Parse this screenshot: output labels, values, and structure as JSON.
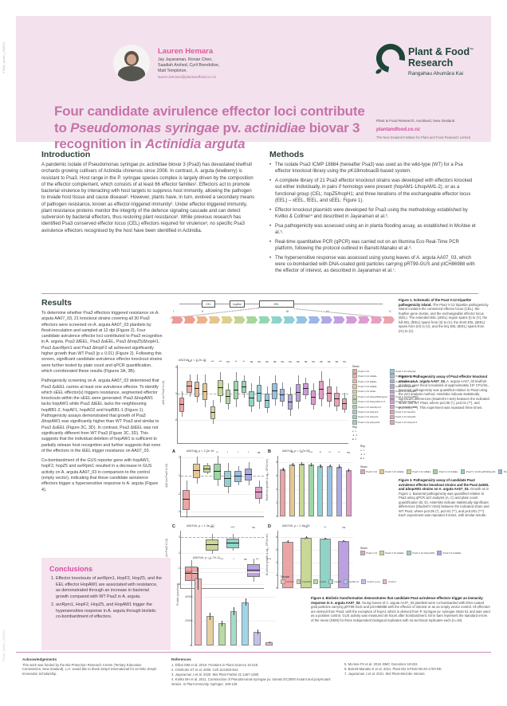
{
  "page": {
    "side_label_top": "PSA3_poster_082021",
    "side_label_bottom": "PSA3_poster_082021"
  },
  "header": {
    "author_name": "Lauren Hemara",
    "coauthors_line1": "Jay Jayaraman, Ronan Chen,",
    "coauthors_line2": "Saadiah Arshed, Cyril Brendolise,",
    "coauthors_line3": "Matt Templeton.",
    "email": "lauren.hemara@plantandfood.co.nz",
    "logo": {
      "line1": "Plant & Food",
      "tm": "™",
      "line2": "Research",
      "tagline": "Rangahau Ahumāra Kai"
    },
    "affiliation": "Plant & Food Research, Auckland, New Zealand",
    "website": "plantandfood.co.nz",
    "institute": "The New Zealand Institute for Plant and Food Research Limited",
    "title": {
      "line1": "Four candidate avirulence effector loci contribute",
      "line2_pre": "to ",
      "line2_it1": "Pseudomonas syringae",
      "line2_mid": " pv. ",
      "line2_it2": "actinidiae",
      "line2_post": " biovar 3",
      "line3_pre": "recognition in ",
      "line3_it": "Actinidia arguta"
    },
    "brand_pink": "#d14f9e",
    "brand_green": "#1d4637"
  },
  "intro": {
    "heading": "Introduction",
    "body": "A pandemic isolate of Pseudomonas syringae pv. actinidiae biovar 3 (Psa3) has devastated kiwifruit orchards growing cultivars of Actinidia chinensis since 2008. In contrast, A. arguta (kiwiberry) is resistant to Psa3. Host range in the P. syringae species complex is largely driven by the composition of the effector complement, which consists of at least 66 effector families¹. Effectors act to promote bacterial virulence by interacting with host targets to suppress host immunity, allowing the pathogen to invade host tissue and cause disease². However, plants have, in turn, evolved a secondary means of pathogen resistance, known as effector-triggered immunity². Under effector-triggered immunity, plant resistance proteins monitor the integrity of the defence signaling cascade and can detect subversion by bacterial effectors, thus restoring plant resistance². While previous research has identified Psa3 conserved effector locus (CEL) effectors required for virulence³, no specific Psa3 avirulence effectors recognised by the host have been identified in Actinidia."
  },
  "methods": {
    "heading": "Methods",
    "bullets": [
      "The isolate Psa3 ICMP 18884 (hereafter Psa3) was used as the wild-type (WT) for a Psa effector knockout library using the pK18mobsacB-based system.",
      "A complete library of 21 Psa3 effector knockout strains was developed with effectors knocked out either individually, in pairs if homologs were present (hopAM1-1/hopAM1-2), or as a functional group (CEL; hopZ5/hopH1; and three iterations of the exchangeable effector locus (EEL) – xEEL, fEEL, and sEEL: Figure 1).",
      "Effector knockout plasmids were developed for Psa3 using the methodology established by Kvitko & Collmer⁴ and described in Jayaraman et al.³.",
      "Psa pathogenicity was assessed using an in planta flooding assay, as established in McAtee et al.⁵.",
      "Real-time quantitative PCR (qPCR) was carried out on an Illumina Eco Real-Time PCR platform, following the protocol outlined in Barrett-Manako et al.⁶.",
      "The hypersensitive response was assessed using young leaves of A. arguta AA07_03, which were co-bombarded with DNA-coated gold particles carrying pRT99-GUS and pICH86988 with the effector of interest, as described in Jayaraman et al.⁷."
    ]
  },
  "results": {
    "heading": "Results",
    "p1": "To determine whether Psa3 effectors triggered resistance on A. arguta AA07_03, 21 knockout strains covering all 30 Psa3 effectors were screened on A. arguta AA07_03 plantlets by flood-inoculation and sampled at 12 dpi (Figure 2). Four candidate avirulence effector loci contributed to Psa3 recognition in A. arguta. Psa3 ΔfEEL, Psa3 ΔsEEL, Psa3 ΔhopZ5/ΔhopH1, Psa3 ΔavrRpm1 and Psa3 ΔhopF2 all achieved significantly higher growth than WT Psa3 (p ≤ 0.01) (Figure 2). Following this screen, significant candidate avirulence effector knockout strains were further tested by plate count and qPCR quantification, which corroborated these results (Figures 3A, 3B).",
    "p2": "Pathogenicity screening on A. arguta AA07_03 determined that Psa3 ΔsEEL carries at least one avirulence effector. To identify which sEEL effector(s) triggers resistance, segmented effector knockouts within the sEEL were generated. Psa3 ΔhopAW1 lacks hopAW1 while Psa3 ΔtEEL lacks the neighbouring hopBB1-2, hopAF1, hopAO2 and hopBB1-1 (Figure 1). Pathogenicity assays demonstrated that growth of Psa3 ΔhopAW1 was significantly higher than WT Psa3 and similar to Psa3 ΔsEEL (Figure 3C, 3D). In contrast, Psa3 ΔtEEL was not significantly different from WT Psa3 (Figure 3C, 3D). This suggests that the individual deletion of hopAW1 is sufficient to partially release host recognition and further suggests that none of the effectors in the tEEL trigger resistance on AA07_03.",
    "p3": "Co-bombardment of the GUS reporter gene with hopAW1, hopF2, hopZ5 and avrRpm1 resulted in a decrease in GUS activity on A. arguta AA07_03 in comparison to the control (empty vector), indicating that these candidate avirulence effectors trigger a hypersensitive response in A. arguta (Figure 4)."
  },
  "conclusions": {
    "heading": "Conclusions",
    "items": [
      "Effector knockouts of avrRpm1, HopF2, HopZ5, and the EEL effector HopAW1 are associated with resistance, as demonstrated through an increase in bacterial growth compared with WT Psa3 in A. arguta.",
      "avrRpm1, HopF2, HopZ5, and HopAW1 trigger the hypersensitive response in A. arguta through biolistic co-bombardment of effectors."
    ]
  },
  "figures": {
    "fig1": {
      "caption_title": "Figure 1. Schematic of the Psa3 V-13 tripartite pathogenicity island.",
      "caption_body": "The Psa3 V-13 tripartite pathogenicity island contains the conserved effector locus (CEL), the hopfive gene cluster, and the exchangeable effector locus (EEL). The extended EEL (xEEL) region spans (I) to (V), the full EEL (fEEL) spans from (II) to (V), the short EEL (sEEL) spans from (III) to (V), and the tiny EEL (tEEL) spans from (IV) to (V).",
      "region_boxes": [
        "CEL",
        "hopfive",
        "EEL"
      ],
      "markers": [
        "I",
        "II",
        "III",
        "IV",
        "V"
      ],
      "marker_pos": [
        1,
        14,
        52,
        70,
        98
      ],
      "gene_colors": [
        "#e89b9b",
        "#ef9f8d",
        "#edb28c",
        "#e7c48c",
        "#ddd08d",
        "#c4d492",
        "#a6d69c",
        "#94d6b0",
        "#8dd4c8",
        "#8dd0d8",
        "#93c4e2",
        "#9fb4e8",
        "#afa8e8",
        "#c2a0e0",
        "#d29cd8",
        "#e09cce",
        "#e79fc0",
        "#eba3ae"
      ]
    },
    "fig2": {
      "chart": {
        "type": "boxplot",
        "title": "ANOVA, p < 2.2e-16",
        "ylabel": "ΔCt (vs Psa3 V-13)",
        "ylim": [
          -9.5,
          5.5
        ],
        "yticks": [
          -5,
          0,
          5
        ],
        "refline": 0,
        "strains": [
          "Psa3 V-13",
          "Psa3 V-13 ΔxEEL",
          "Psa3 V-13 ΔfEEL",
          "Psa3 V-13 ΔsEEL",
          "Psa3 V-13 ΔCEL",
          "Psa3 V-13 ΔhopZ5/ΔhopH1",
          "Psa3 V-13 ΔhopAM1-1/-2",
          "Psa3 V-13 ΔavrRpm1",
          "Psa3 V-13 ΔhopF2",
          "Psa3 V-13 ΔhopA1",
          "Psa3 V-13 ΔhopAZ1",
          "Psa3 V-13 ΔhopS2",
          "Psa3 V-13 ΔhopD1",
          "Psa3 V-13 ΔhopAU1",
          "Psa3 V-13 ΔavrB2",
          "Psa3 V-13 ΔhopD2",
          "Psa3 V-13 ΔhopBP1",
          "Psa3 V-13 ΔhopZ3",
          "Psa3 V-13 ΔhopAS1",
          "Psa3 V-13 ΔavrD1",
          "Psa3 V-13 ΔhopR1",
          "Psa3 V-13 ΔhopAY1"
        ],
        "medians": [
          -2.0,
          1.5,
          1.0,
          0.5,
          -3.5,
          1.2,
          -0.5,
          0.8,
          1.4,
          -0.8,
          0.2,
          -1.2,
          0.6,
          -0.2,
          -1.5,
          0.3,
          1.0,
          -0.6,
          0.9,
          0.1,
          -1.0,
          -1.8
        ],
        "spreads": [
          1.2,
          1.0,
          1.3,
          1.5,
          1.1,
          1.4,
          1.2,
          1.6,
          1.0,
          1.3,
          1.5,
          1.2,
          1.4,
          1.1,
          1.3,
          1.5,
          1.0,
          1.2,
          1.6,
          1.3,
          1.1,
          0.9
        ],
        "sig": [
          "",
          "***",
          "**",
          "**",
          "***",
          "***",
          "ns",
          "**",
          "**",
          "ns",
          "ns",
          "ns",
          "ns",
          "ns",
          "ns",
          "ns",
          "ns",
          "ns",
          "ns",
          "ns",
          "ns",
          "ns"
        ]
      },
      "palette": [
        "#eda4a4",
        "#eeae9c",
        "#ecbb96",
        "#e6c892",
        "#dcd392",
        "#c8d895",
        "#b0d89c",
        "#9cd8a6",
        "#93d6b5",
        "#8fd4c6",
        "#8dd2d5",
        "#8fccdd",
        "#95c2e2",
        "#9fb5e6",
        "#aca9e6",
        "#bba0e2",
        "#cb9cdc",
        "#d99bd2",
        "#e29dc6",
        "#e8a0ba",
        "#eba2b0",
        "#eca3a9"
      ],
      "legend_title": "Strain",
      "rep": {
        "title": "Rep",
        "symbols": [
          "●",
          "▲",
          "■"
        ],
        "labels": [
          "1",
          "2",
          "3"
        ]
      },
      "caption_title": "Figure 2. Pathogenicity assay of Psa3 effector knockout strains on A. arguta AA07_03.",
      "caption_body": "A. arguta AA07_03 kiwifruit plantlets were flood inoculated at approximately 10⁶ CFU/mL. Bacterial pathogenicity was quantified relative to Psa3 using the ΔCt analysis method. Asterisks indicate statistically significant differences (Student's t-test) between the indicated strain and WT Psa3, where p≤0.05 (*), p≤0.01 (**), and p≤0.001 (***). This experiment was repeated three times."
    },
    "fig3": {
      "panelA": {
        "label": "A",
        "title": "ANOVA, p < 2.2e-16",
        "ylabel": "ΔCt (vs Psa3 V-13)",
        "ylim": [
          -4.5,
          2.2
        ],
        "yticks": [
          -4,
          -2,
          0,
          2
        ],
        "refline": 0,
        "medians": [
          -2.6,
          0.6,
          0.8,
          0.5,
          -0.3,
          0.0,
          0.2,
          -1.8
        ],
        "spreads": [
          1.0,
          0.7,
          0.3,
          0.8,
          0.8,
          0.5,
          0.6,
          0.6
        ],
        "sig": [
          "",
          "**",
          "*",
          "**",
          "*",
          "*",
          "*",
          "ns"
        ]
      },
      "panelB": {
        "label": "B",
        "title": "ANOVA, p = 3.7e-08",
        "ylabel": "Bacterial growth (Log₁₀ CFU/cm²)",
        "ylim": [
          0,
          9
        ],
        "yticks": [
          0,
          2,
          4,
          6,
          8
        ],
        "values": [
          7.0,
          7.7,
          7.8,
          7.7,
          7.5,
          7.5,
          7.4,
          6.9
        ],
        "errors": [
          0.25,
          0.25,
          0.2,
          0.25,
          0.25,
          0.2,
          0.25,
          0.25
        ],
        "sig": [
          "",
          "***",
          "***",
          "***",
          "**",
          "**",
          "**",
          "ns"
        ]
      },
      "panelC": {
        "label": "C",
        "title": "ANOVA, p = 1.3e-10",
        "ylabel": "ΔCt (vs Psa3 V-13)",
        "ylim": [
          -6.5,
          0.8
        ],
        "yticks": [
          -6,
          -4,
          -2,
          0
        ],
        "refline": 0,
        "medians": [
          -4.6,
          -0.9,
          -0.7,
          -4.2
        ],
        "spreads": [
          0.8,
          0.6,
          0.5,
          0.7
        ],
        "sig": [
          "",
          "****",
          "****",
          "ns"
        ]
      },
      "panelD": {
        "label": "D",
        "title": "ANOVA, p = 1.8e-09",
        "ylabel": "Bacterial growth (Log₁₀ CFU/cm²)",
        "ylim": [
          0,
          9
        ],
        "yticks": [
          0,
          2,
          4,
          6,
          8
        ],
        "values": [
          7.3,
          7.9,
          7.75,
          7.35
        ],
        "errors": [
          0.15,
          0.2,
          0.15,
          0.15
        ],
        "sig": [
          "",
          "***",
          "**",
          "ns"
        ]
      },
      "legendAB_title": "Strain",
      "legendAB": [
        "Psa3 V-13",
        "Psa3 V-13 ΔxEEL",
        "Psa3 V-13 ΔfEEL",
        "Psa3 V-13 ΔsEEL",
        "Psa3 V-13 ΔhopZ5/ΔhopH1",
        "Psa3 V-13 ΔavrRpm1",
        "Psa3 V-13 ΔhopF2",
        "Psa3 V-13 ΔhopAM1-1/-2"
      ],
      "paletteAB": [
        "#eda4a4",
        "#e6c892",
        "#c8d895",
        "#9cd8a6",
        "#8fd2d5",
        "#95c2e2",
        "#aca9e6",
        "#e29dc6"
      ],
      "legendCD_title": "Strain",
      "legendCD": [
        "Psa3 V-13",
        "Psa3 V-13 ΔsEEL",
        "Psa3 V-13 ΔhopAW1",
        "Psa3 V-13 ΔtEEL"
      ],
      "paletteCD": [
        "#eda4a4",
        "#c8d895",
        "#8fd4c6",
        "#bba0e2"
      ],
      "caption_title": "Figure 3. Pathogenicity assay of candidate Psa3 avirulence effector knockout strains and the Psa3 ΔsEEL and ΔhopAW1 strains on A. arguta AA07_03.",
      "caption_body": "Growth as in Figure 1. Bacterial pathogenicity was quantified relative to Psa3 using qPCR ΔCt analysis (A, C) and plate count quantification (B, D). Asterisks indicate statistically significant differences (Student's t-test) between the indicated strain and WT Psa3, where p≤0.05 (*), p≤0.01 (**), and p≤0.001 (***). Each experiment was repeated 3 times, with similar results."
    },
    "fig4": {
      "chart": {
        "type": "bar",
        "title": "ANOVA, p = 1.7e-11",
        "ylabel": "Protein (pmol/mg)",
        "ylim": [
          0,
          68000
        ],
        "yticks": [
          0,
          20000,
          40000,
          60000
        ],
        "categories": [
          "Control",
          "hopAW1",
          "hopF2",
          "hopZ5",
          "avrRpm1",
          "hopA1 (+ve)",
          "Unshot"
        ],
        "values": [
          55000,
          24000,
          18000,
          28000,
          35500,
          11000,
          2500
        ],
        "errors": [
          9000,
          2800,
          2200,
          3200,
          2800,
          1800,
          700
        ],
        "sig": [
          "",
          "**",
          "***",
          "*",
          "ns",
          "***",
          "****"
        ]
      },
      "palette": [
        "#f0b9b9",
        "#e6d0a0",
        "#b9dba2",
        "#a3dcc8",
        "#9ed6ea",
        "#c6bfee",
        "#efb3d8"
      ],
      "legend_title": "Sample",
      "caption_title": "Figure 4. Biolistic transformation demonstrates that candidate Psa3 avirulence effectors trigger an immunity response in A. arguta AA07_03.",
      "caption_body": "Young leaves of A. arguta AA07_03 plantlets were co-bombarded with DNA-coated gold particles carrying pRT99-GUS and pICH86988 with the effector of interest or as an empty vector control. All effectors are derived from Psa3, with the exception of hopA1 which is derived from P. syringae pv. syringae strain 61 and was used as a positive control. GUS activity was measured 48 hours after bombardment. Error bars represent the standard errors of the mean (SEM) for three independent biological replicates with six technical replicates each (n=18)."
    }
  },
  "footer": {
    "ack_heading": "Acknowledgements",
    "ack_body": "This work was funded by the Bio-Protection Research Centre (Tertiary Education Commission, New Zealand). L.H. would like to thank Zespri International for an MSc Zespri Innovation Scholarship.",
    "ref_heading": "References",
    "references": [
      "1.  Dillon MM et al. 2019. Frontiers in Plant Science 10:418.",
      "2.  Chisholm ST et al. 2006. Cell 124:803-814.",
      "3.  Jayaraman J et al. 2020. Mol Plant Pathol 21:1467-1480.",
      "4.  Kvitko BH et al. 2011. Construction of Pseudomonas syringae pv. tomato DC3000 mutant and polymutant strains. In Plant Immunity. Springer. 109-128.",
      "5.  McAtee PA et al. 2018. BMC Genomics 19:822.",
      "6.  Barrett-Manako K et al. 2021. Plant Dis 5:PDIS-08-20-1703-RE.",
      "7.  Jayaraman J et al. 2021. Mol Plant-Microbe Interact."
    ]
  }
}
